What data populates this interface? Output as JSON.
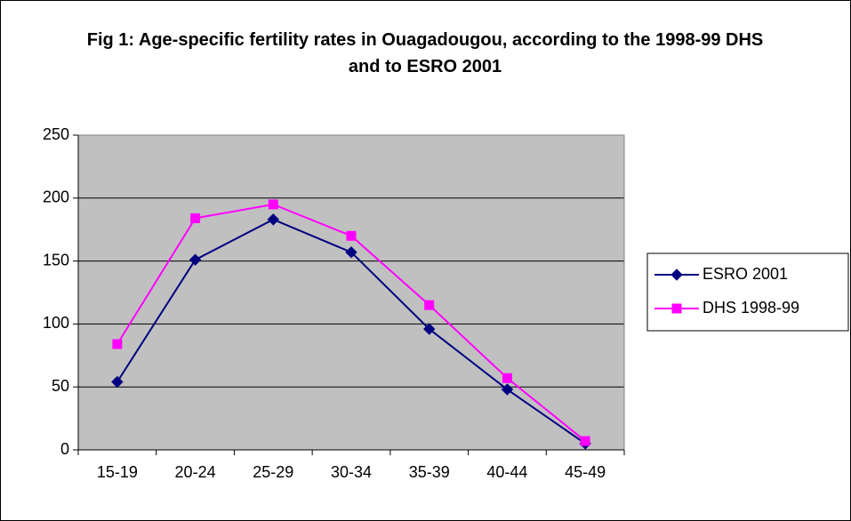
{
  "chart_data": {
    "type": "line",
    "title": "Fig 1: Age-specific fertility rates in Ouagadougou, according to the 1998-99 DHS and to ESRO 2001",
    "categories": [
      "15-19",
      "20-24",
      "25-29",
      "30-34",
      "35-39",
      "40-44",
      "45-49"
    ],
    "series": [
      {
        "name": "ESRO 2001",
        "color": "#000080",
        "marker": "diamond",
        "values": [
          54,
          151,
          183,
          157,
          96,
          48,
          5
        ]
      },
      {
        "name": "DHS 1998-99",
        "color": "#ff00ff",
        "marker": "square",
        "values": [
          84,
          184,
          195,
          170,
          115,
          57,
          7
        ]
      }
    ],
    "ylim": [
      0,
      250
    ],
    "yticks": [
      0,
      50,
      100,
      150,
      200,
      250
    ],
    "grid": true,
    "legend": "right"
  }
}
